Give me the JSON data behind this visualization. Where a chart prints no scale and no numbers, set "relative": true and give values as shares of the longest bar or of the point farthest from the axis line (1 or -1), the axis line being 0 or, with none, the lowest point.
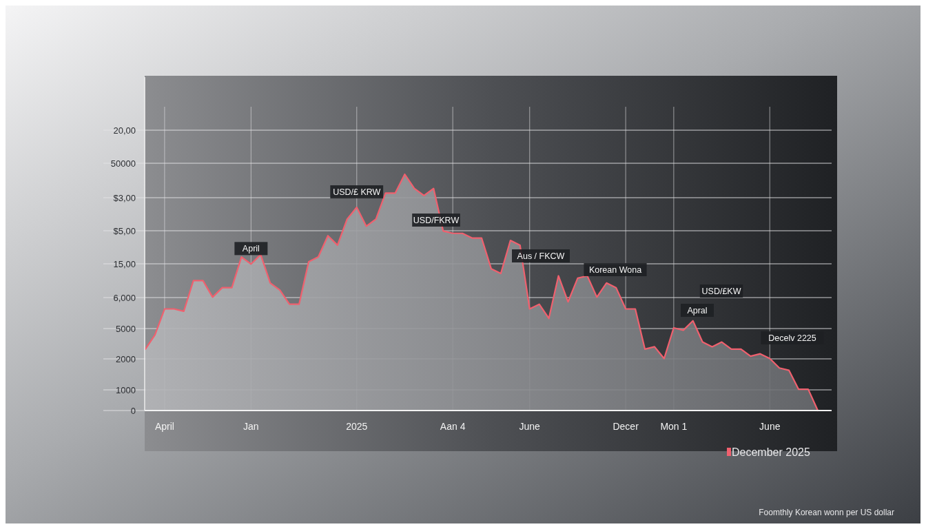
{
  "chart_data": {
    "type": "area",
    "relative": true,
    "categories": [
      null,
      null,
      "April",
      null,
      null,
      null,
      null,
      null,
      null,
      null,
      null,
      "Jan",
      null,
      null,
      null,
      null,
      null,
      null,
      null,
      null,
      null,
      null,
      "2025",
      null,
      null,
      null,
      null,
      null,
      null,
      null,
      null,
      null,
      "Aan 4",
      null,
      null,
      null,
      null,
      null,
      null,
      null,
      "June",
      null,
      null,
      null,
      null,
      null,
      null,
      null,
      null,
      null,
      "Decer",
      null,
      null,
      null,
      null,
      "Mon 1",
      null,
      null,
      null,
      null,
      null,
      null,
      null,
      null,
      null,
      "June",
      null,
      null,
      null,
      null,
      null
    ],
    "series": [
      {
        "name": "December 2025",
        "color": "#f0606e",
        "values": [
          0.26,
          0.32,
          0.43,
          0.43,
          0.42,
          0.55,
          0.55,
          0.48,
          0.52,
          0.52,
          0.65,
          0.62,
          0.66,
          0.54,
          0.51,
          0.45,
          0.45,
          0.63,
          0.65,
          0.74,
          0.7,
          0.81,
          0.86,
          0.78,
          0.81,
          0.92,
          0.92,
          1,
          0.94,
          0.91,
          0.94,
          0.76,
          0.75,
          0.75,
          0.73,
          0.73,
          0.6,
          0.58,
          0.72,
          0.7,
          0.43,
          0.45,
          0.39,
          0.57,
          0.46,
          0.56,
          0.57,
          0.48,
          0.54,
          0.52,
          0.43,
          0.43,
          0.26,
          0.27,
          0.22,
          0.35,
          0.34,
          0.38,
          0.29,
          0.27,
          0.29,
          0.26,
          0.26,
          0.23,
          0.24,
          0.22,
          0.18,
          0.17,
          0.09,
          0.09,
          0
        ]
      }
    ],
    "grid": true,
    "legend": "bottom right",
    "annotations": [
      {
        "text": "April",
        "x": "Jan",
        "y": 0.62
      },
      {
        "text": "USD/£ KRW",
        "x": "2025",
        "y": 0.86
      },
      "0",
      "1000",
      "2000",
      "5000",
      "6,000",
      "15,00",
      "$5,00",
      "$3,00",
      "50000",
      "20,00",
      "USD/FKRW",
      "Aus / FKCW",
      "Korean Wona",
      "USD/£KW",
      "Apral",
      "Decelv 2225",
      "Foomthly Korean wonn per US dollar"
    ]
  }
}
